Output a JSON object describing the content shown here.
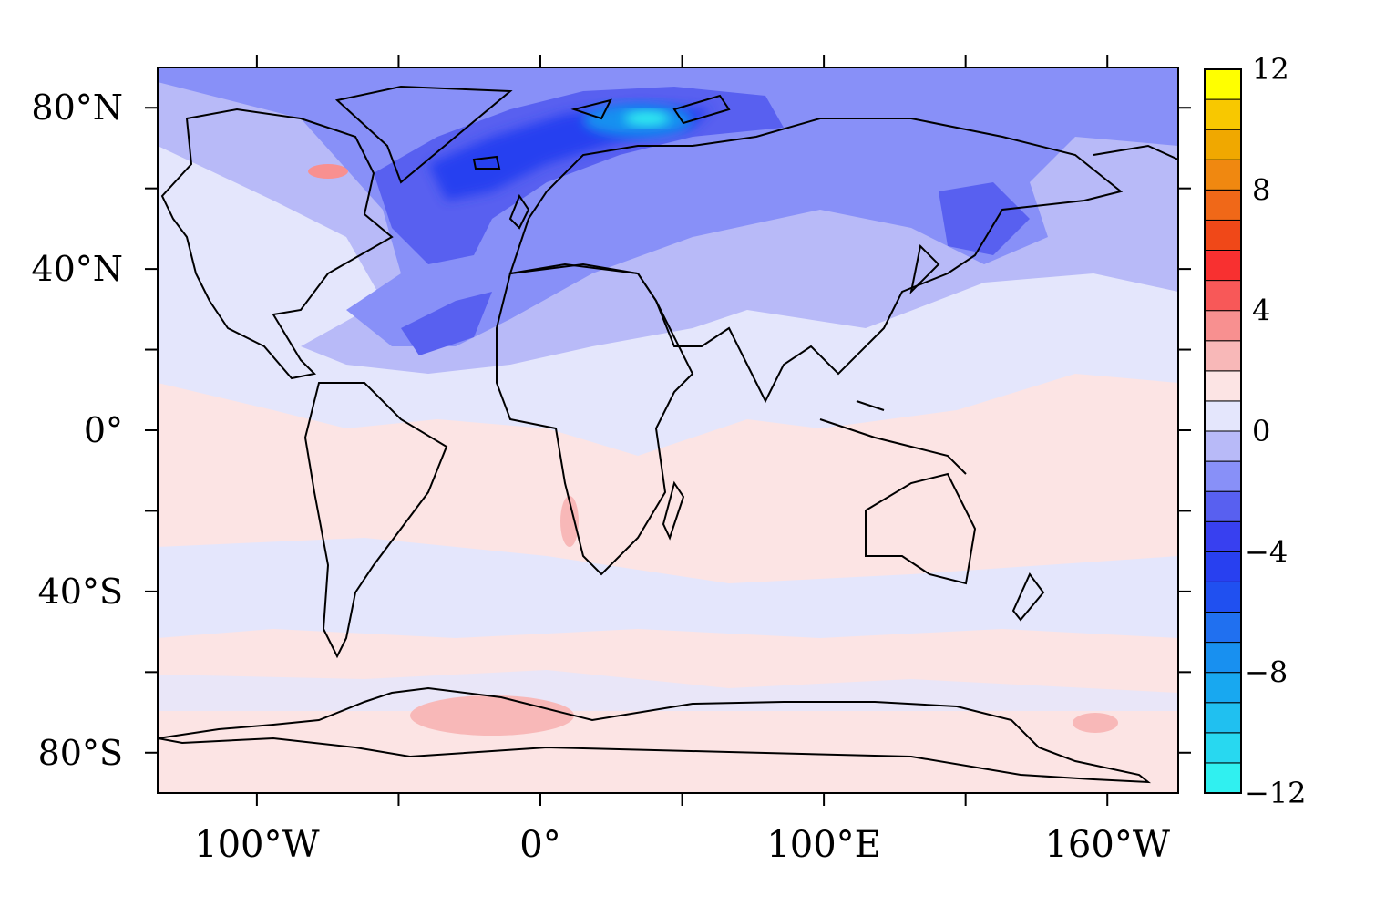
{
  "map": {
    "projection": "cylindrical equidistant",
    "field": "anomaly",
    "lat_ticks": [
      {
        "value": 80,
        "label": "80°N"
      },
      {
        "value": 40,
        "label": "40°N"
      },
      {
        "value": 0,
        "label": "0°"
      },
      {
        "value": -40,
        "label": "40°S"
      },
      {
        "value": -80,
        "label": "80°S"
      }
    ],
    "lon_ticks": [
      {
        "value": -100,
        "label": "100°W"
      },
      {
        "value": 0,
        "label": "0°"
      },
      {
        "value": 100,
        "label": "100°E"
      },
      {
        "value": 200,
        "label": "160°W"
      }
    ],
    "lon_range": [
      -135,
      225
    ],
    "lat_range": [
      -90,
      90
    ]
  },
  "colorbar": {
    "min": -12,
    "max": 12,
    "levels": 24,
    "tick_labels": [
      {
        "value": 12,
        "label": "12"
      },
      {
        "value": 8,
        "label": "8"
      },
      {
        "value": 4,
        "label": "4"
      },
      {
        "value": 0,
        "label": "0"
      },
      {
        "value": -4,
        "label": "−4"
      },
      {
        "value": -8,
        "label": "−8"
      },
      {
        "value": -12,
        "label": "−12"
      }
    ],
    "colors": [
      "#30f0f0",
      "#28d8f0",
      "#20c0f0",
      "#18a8f0",
      "#1890f0",
      "#2070f0",
      "#2050f0",
      "#2840f0",
      "#3840f0",
      "#5860f0",
      "#8890f8",
      "#b8baf8",
      "#e4e6fc",
      "#fce4e4",
      "#f8b8b8",
      "#f89090",
      "#f85858",
      "#f83030",
      "#f04818",
      "#f06818",
      "#f08810",
      "#f0a800",
      "#f8c800",
      "#ffff00"
    ]
  }
}
